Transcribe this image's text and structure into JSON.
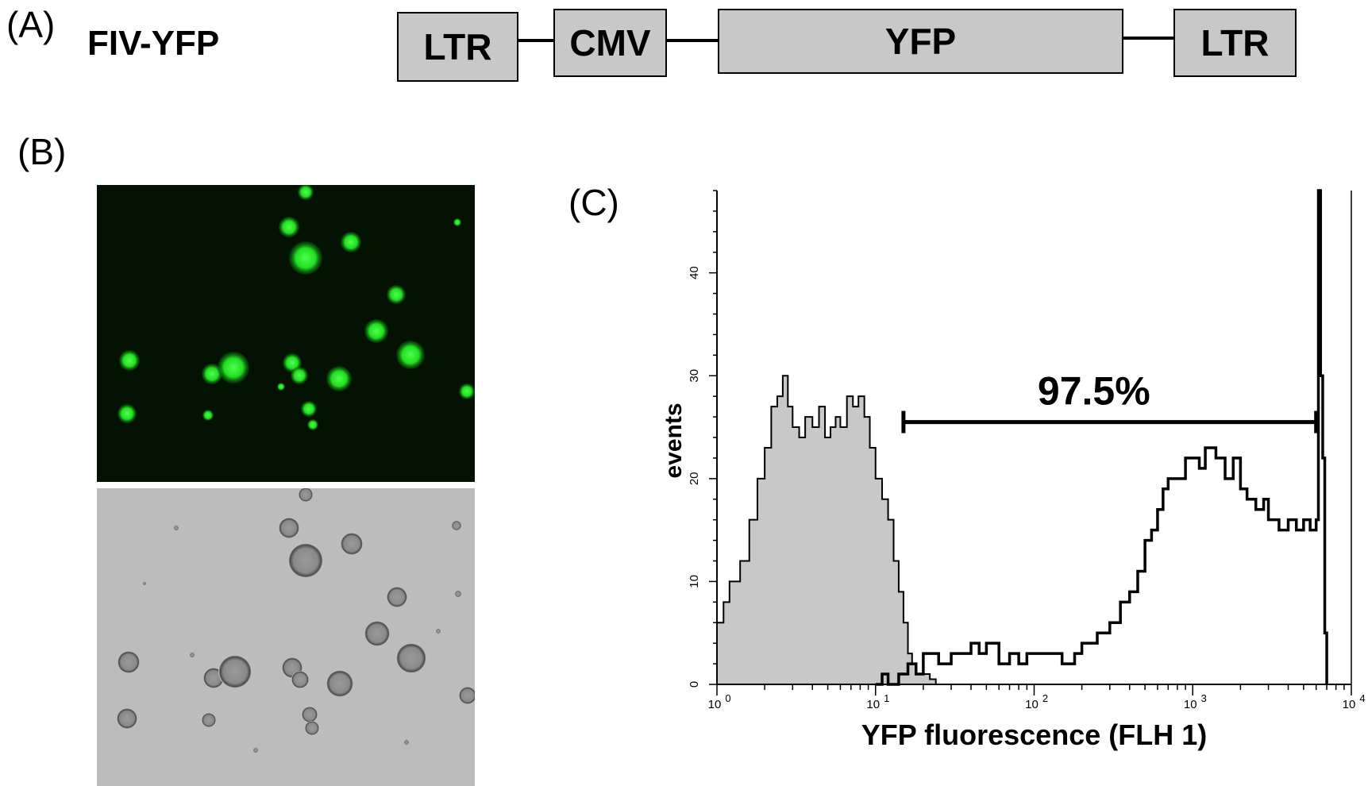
{
  "panels": {
    "a": "(A)",
    "b": "(B)",
    "c": "(C)"
  },
  "construct": {
    "name": "FIV-YFP",
    "elements": [
      "LTR",
      "CMV",
      "YFP",
      "LTR"
    ]
  },
  "micrographs": {
    "fluorescence_color": "#22dd22",
    "brightfield_color": "#bcbcbc"
  },
  "chart_data": {
    "type": "histogram",
    "xlabel": "YFP fluorescence (FLH 1)",
    "ylabel": "events",
    "xscale": "log",
    "xlim": [
      1,
      10000
    ],
    "ylim": [
      0,
      48
    ],
    "x_ticks": [
      1,
      10,
      100,
      1000,
      10000
    ],
    "x_tick_labels": [
      {
        "base": "10",
        "exp": "0"
      },
      {
        "base": "10",
        "exp": "1"
      },
      {
        "base": "10",
        "exp": "2"
      },
      {
        "base": "10",
        "exp": "3"
      },
      {
        "base": "10",
        "exp": "4"
      }
    ],
    "y_ticks": [
      0,
      10,
      20,
      30,
      40
    ],
    "gate": {
      "label": "97.5%",
      "x_start": 15,
      "x_end": 6000,
      "y": 25.5
    },
    "series": [
      {
        "fill": "#c8c8c8",
        "x": [
          1,
          1.1,
          1.2,
          1.4,
          1.6,
          1.8,
          2.0,
          2.2,
          2.4,
          2.6,
          2.8,
          3.0,
          3.3,
          3.6,
          4.0,
          4.4,
          4.8,
          5.2,
          5.6,
          6.0,
          6.6,
          7.2,
          7.8,
          8.5,
          9.2,
          10,
          11,
          12,
          13,
          14,
          15,
          16,
          17,
          18,
          20,
          22,
          24
        ],
        "values": [
          6,
          8,
          10,
          12,
          16,
          20,
          23,
          27,
          28,
          30,
          27,
          25,
          24,
          26,
          25,
          27,
          24,
          25,
          26,
          25,
          28,
          27,
          28,
          26,
          23,
          20,
          18,
          16,
          12,
          9,
          6,
          3,
          2,
          1,
          1,
          0.5,
          0
        ]
      },
      {
        "fill": "none",
        "x": [
          10,
          11,
          12,
          14,
          16,
          18,
          20,
          25,
          30,
          35,
          40,
          45,
          50,
          60,
          70,
          80,
          90,
          100,
          120,
          150,
          180,
          200,
          250,
          300,
          350,
          400,
          450,
          500,
          550,
          600,
          650,
          700,
          800,
          900,
          1000,
          1100,
          1200,
          1400,
          1600,
          1800,
          2000,
          2200,
          2500,
          2800,
          3000,
          3500,
          4000,
          4500,
          5000,
          5500,
          6000,
          6200,
          6400,
          6600,
          6800,
          7000
        ],
        "values": [
          0,
          1,
          0,
          1,
          2,
          1,
          3,
          2,
          3,
          3,
          4,
          3,
          4,
          2,
          3,
          2,
          3,
          3,
          3,
          2,
          3,
          4,
          5,
          6,
          8,
          9,
          11,
          14,
          15,
          17,
          19,
          20,
          20,
          22,
          22,
          21,
          23,
          22,
          20,
          22,
          19,
          18,
          17,
          18,
          16,
          15,
          16,
          15,
          16,
          15,
          16,
          48,
          30,
          22,
          5,
          0
        ]
      }
    ]
  }
}
